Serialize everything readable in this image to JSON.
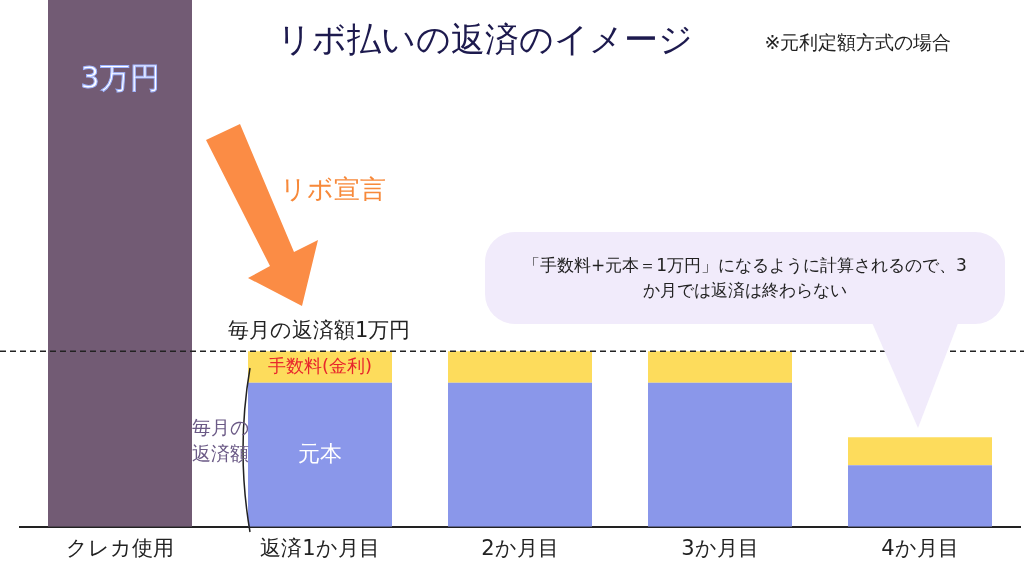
{
  "chart_data": {
    "type": "bar",
    "title": "リボ払いの返済のイメージ",
    "subtitle": "※元利定額方式の場合",
    "categories": [
      "クレカ使用",
      "返済1か月目",
      "2か月目",
      "3か月目",
      "4か月目"
    ],
    "stacked": true,
    "tick_labels": "x",
    "grid": false,
    "legend": false,
    "series": [
      {
        "color": "#725b74",
        "values": [
          3,
          null,
          null,
          null,
          null
        ],
        "value_labels": [
          "3万円",
          null,
          null,
          null,
          null
        ]
      },
      {
        "name": "元本",
        "color": "#8a97ea",
        "values": [
          null,
          0.82,
          0.82,
          0.82,
          0.35
        ]
      },
      {
        "name": "手数料(金利)",
        "color": "#fddc5c",
        "values": [
          null,
          0.18,
          0.18,
          0.18,
          0.16
        ]
      }
    ],
    "ref_lines": [
      {
        "axis": "y",
        "value": 1,
        "label": "毎月の返済額1万円",
        "line_style": "dashed"
      }
    ],
    "annotations": [
      "リボ宣言",
      "「手数料+元本＝1万円」になるように計算されるので、3か月では返済は終わらない",
      "毎月の返済額"
    ]
  }
}
